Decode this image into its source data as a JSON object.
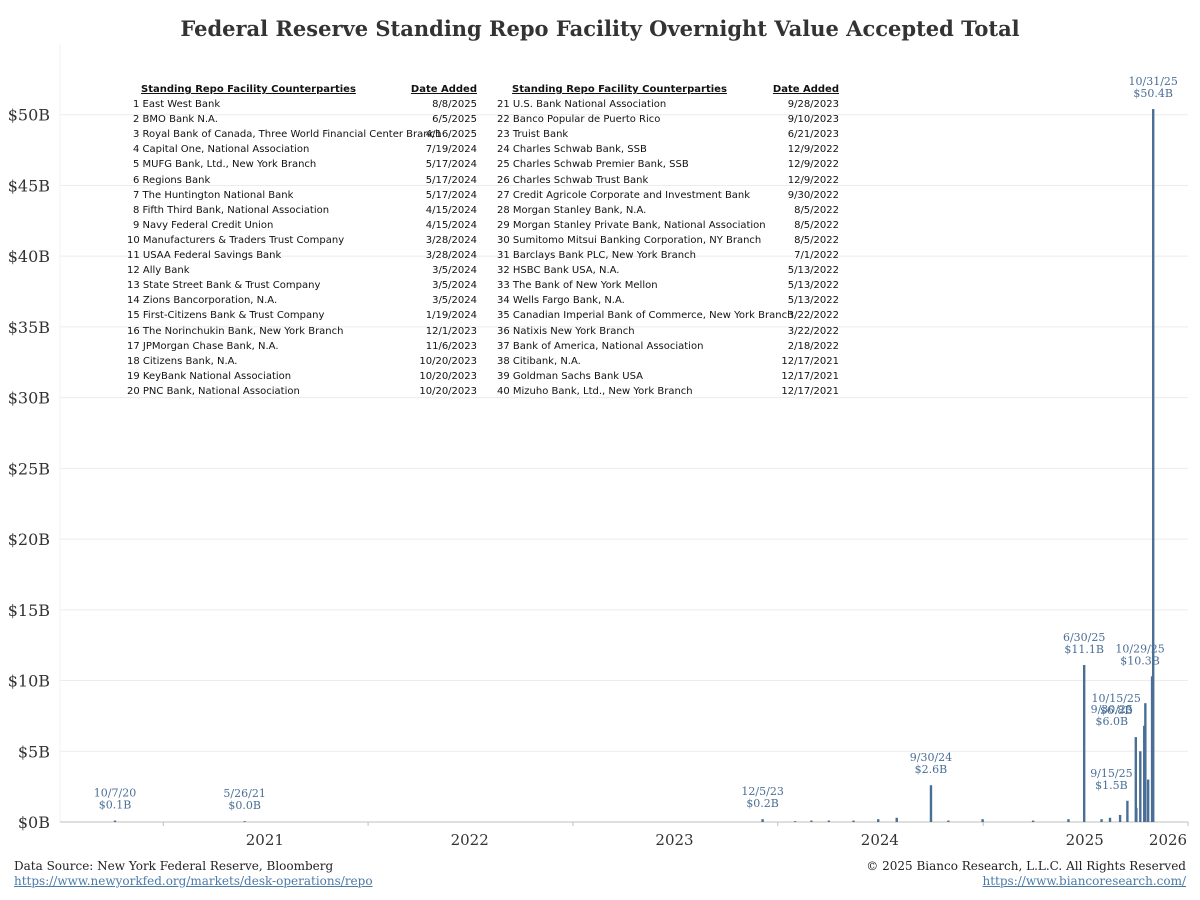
{
  "title": "Federal Reserve Standing Repo Facility Overnight Value Accepted Total",
  "table": {
    "header_counterparties": "Standing Repo Facility Counterparties",
    "header_date": "Date Added",
    "left": [
      {
        "name": "1 East West Bank",
        "date": "8/8/2025"
      },
      {
        "name": "2 BMO Bank N.A.",
        "date": "6/5/2025"
      },
      {
        "name": "3 Royal Bank of Canada, Three World Financial Center Branch",
        "date": "4/16/2025"
      },
      {
        "name": "4 Capital One, National Association",
        "date": "7/19/2024"
      },
      {
        "name": "5 MUFG Bank, Ltd., New York Branch",
        "date": "5/17/2024"
      },
      {
        "name": "6 Regions Bank",
        "date": "5/17/2024"
      },
      {
        "name": "7 The Huntington National Bank",
        "date": "5/17/2024"
      },
      {
        "name": "8 Fifth Third Bank, National Association",
        "date": "4/15/2024"
      },
      {
        "name": "9 Navy Federal Credit Union",
        "date": "4/15/2024"
      },
      {
        "name": "10 Manufacturers & Traders Trust Company",
        "date": "3/28/2024"
      },
      {
        "name": "11 USAA Federal Savings Bank",
        "date": "3/28/2024"
      },
      {
        "name": "12 Ally Bank",
        "date": "3/5/2024"
      },
      {
        "name": "13 State Street Bank & Trust Company",
        "date": "3/5/2024"
      },
      {
        "name": "14 Zions Bancorporation, N.A.",
        "date": "3/5/2024"
      },
      {
        "name": "15 First-Citizens Bank & Trust Company",
        "date": "1/19/2024"
      },
      {
        "name": "16 The Norinchukin Bank, New York Branch",
        "date": "12/1/2023"
      },
      {
        "name": "17 JPMorgan Chase Bank, N.A.",
        "date": "11/6/2023"
      },
      {
        "name": "18 Citizens Bank, N.A.",
        "date": "10/20/2023"
      },
      {
        "name": "19 KeyBank National Association",
        "date": "10/20/2023"
      },
      {
        "name": "20 PNC Bank, National Association",
        "date": "10/20/2023"
      }
    ],
    "right": [
      {
        "name": "21 U.S. Bank National Association",
        "date": "9/28/2023"
      },
      {
        "name": "22 Banco Popular de Puerto Rico",
        "date": "9/10/2023"
      },
      {
        "name": "23 Truist Bank",
        "date": "6/21/2023"
      },
      {
        "name": "24 Charles Schwab Bank, SSB",
        "date": "12/9/2022"
      },
      {
        "name": "25 Charles Schwab Premier Bank, SSB",
        "date": "12/9/2022"
      },
      {
        "name": "26 Charles Schwab Trust Bank",
        "date": "12/9/2022"
      },
      {
        "name": "27 Credit Agricole Corporate and Investment Bank",
        "date": "9/30/2022"
      },
      {
        "name": "28 Morgan Stanley Bank, N.A.",
        "date": "8/5/2022"
      },
      {
        "name": "29 Morgan Stanley Private Bank, National Association",
        "date": "8/5/2022"
      },
      {
        "name": "30 Sumitomo Mitsui Banking Corporation, NY Branch",
        "date": "8/5/2022"
      },
      {
        "name": "31 Barclays Bank PLC, New York Branch",
        "date": "7/1/2022"
      },
      {
        "name": "32 HSBC Bank USA, N.A.",
        "date": "5/13/2022"
      },
      {
        "name": "33 The Bank of New York Mellon",
        "date": "5/13/2022"
      },
      {
        "name": "34 Wells Fargo Bank, N.A.",
        "date": "5/13/2022"
      },
      {
        "name": "35 Canadian Imperial Bank of Commerce, New York Branch",
        "date": "3/22/2022"
      },
      {
        "name": "36 Natixis New York Branch",
        "date": "3/22/2022"
      },
      {
        "name": "37 Bank of America, National Association",
        "date": "2/18/2022"
      },
      {
        "name": "38 Citibank, N.A.",
        "date": "12/17/2021"
      },
      {
        "name": "39 Goldman Sachs Bank USA",
        "date": "12/17/2021"
      },
      {
        "name": "40 Mizuho Bank, Ltd., New York Branch",
        "date": "12/17/2021"
      }
    ]
  },
  "chart_data": {
    "type": "bar",
    "title": "Federal Reserve Standing Repo Facility Overnight Value Accepted Total",
    "xlabel": "",
    "ylabel": "",
    "xlim": [
      "2020-07-01",
      "2026-01-01"
    ],
    "ylim": [
      0,
      50
    ],
    "grid": true,
    "y_ticks": [
      "$0B",
      "$5B",
      "$10B",
      "$15B",
      "$20B",
      "$25B",
      "$30B",
      "$35B",
      "$40B",
      "$45B",
      "$50B"
    ],
    "x_ticks": [
      "2021",
      "2022",
      "2023",
      "2024",
      "2025",
      "2026"
    ],
    "bar_color": "#4a6f96",
    "series": [
      {
        "x": [
          "2020-10-07",
          "2021-05-26",
          "2023-12-05",
          "2024-02-01",
          "2024-03-01",
          "2024-04-01",
          "2024-05-15",
          "2024-06-28",
          "2024-07-31",
          "2024-09-30",
          "2024-10-31",
          "2024-12-31",
          "2025-03-31",
          "2025-06-02",
          "2025-06-30",
          "2025-07-31",
          "2025-08-15",
          "2025-09-02",
          "2025-09-15",
          "2025-09-30",
          "2025-10-01",
          "2025-10-08",
          "2025-10-15",
          "2025-10-17",
          "2025-10-22",
          "2025-10-29",
          "2025-10-31"
        ],
        "values": [
          0.1,
          0.0,
          0.2,
          0.05,
          0.1,
          0.1,
          0.1,
          0.2,
          0.3,
          2.6,
          0.1,
          0.2,
          0.1,
          0.2,
          11.1,
          0.2,
          0.3,
          0.5,
          1.5,
          6.0,
          1.0,
          5.0,
          6.8,
          8.4,
          3.0,
          10.3,
          50.4
        ]
      }
    ],
    "annotations": [
      {
        "date": "10/7/20",
        "value": "$0.1B"
      },
      {
        "date": "5/26/21",
        "value": "$0.0B"
      },
      {
        "date": "12/5/23",
        "value": "$0.2B"
      },
      {
        "date": "9/30/24",
        "value": "$2.6B"
      },
      {
        "date": "6/30/25",
        "value": "$11.1B"
      },
      {
        "date": "9/15/25",
        "value": "$1.5B"
      },
      {
        "date": "9/30/25",
        "value": "$6.0B"
      },
      {
        "date": "10/15/25",
        "value": "$6.8B"
      },
      {
        "date": "10/29/25",
        "value": "$10.3B"
      },
      {
        "date": "10/31/25",
        "value": "$50.4B"
      }
    ]
  },
  "footer": {
    "source_label": "Data Source: New York Federal Reserve, Bloomberg",
    "source_url": "https://www.newyorkfed.org/markets/desk-operations/repo",
    "copyright": "© 2025 Bianco Research, L.L.C. All Rights Reserved",
    "site_url": "https://www.biancoresearch.com/"
  }
}
